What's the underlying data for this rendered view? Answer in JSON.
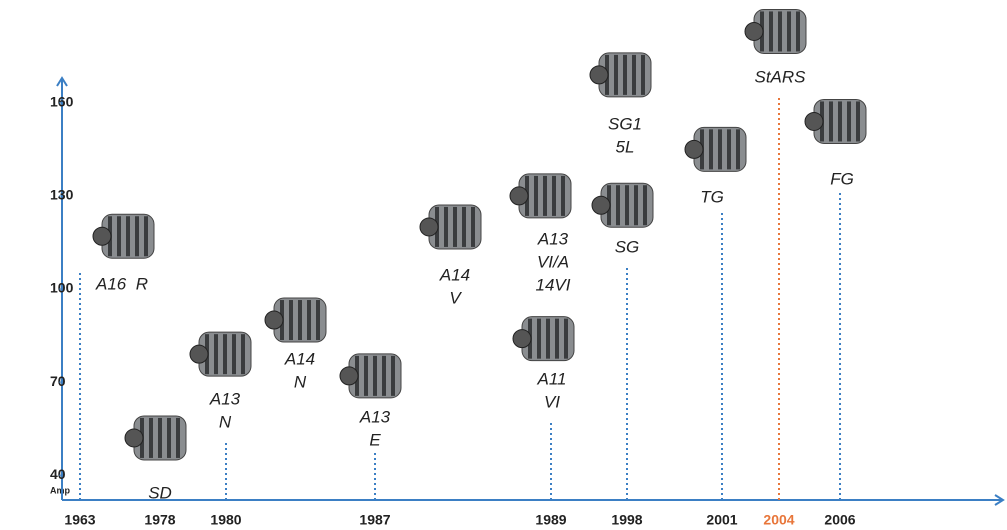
{
  "chart_data": {
    "type": "timeline",
    "y_unit": "Amp",
    "ylim": [
      32,
      168
    ],
    "yticks": [
      40,
      70,
      100,
      130,
      160
    ],
    "categories": [
      "1963",
      "1978",
      "1980",
      "1987",
      "1989",
      "1998",
      "2001",
      "2004",
      "2006"
    ],
    "highlight": "2004",
    "axis_color": "#3b7fc4",
    "highlight_color": "#e8763a",
    "products": [
      {
        "label": [
          "A16  R"
        ],
        "amp": 117
      },
      {
        "label": [
          "SD"
        ],
        "amp": 52
      },
      {
        "label": [
          "A13",
          "N"
        ],
        "amp": 79
      },
      {
        "label": [
          "A14",
          "N"
        ],
        "amp": 90
      },
      {
        "label": [
          "A13",
          "E"
        ],
        "amp": 72
      },
      {
        "label": [
          "A14",
          "V"
        ],
        "amp": 120
      },
      {
        "label": [
          "A13",
          "VI/A",
          "14VI"
        ],
        "amp": 130
      },
      {
        "label": [
          "A11",
          "VI"
        ],
        "amp": 84
      },
      {
        "label": [
          "SG1",
          "5L"
        ],
        "amp": 169
      },
      {
        "label": [
          "SG"
        ],
        "amp": 127
      },
      {
        "label": [
          "TG"
        ],
        "amp": 145
      },
      {
        "label": [
          "StARS"
        ],
        "amp": 183
      },
      {
        "label": [
          "FG"
        ],
        "amp": 154
      }
    ]
  }
}
